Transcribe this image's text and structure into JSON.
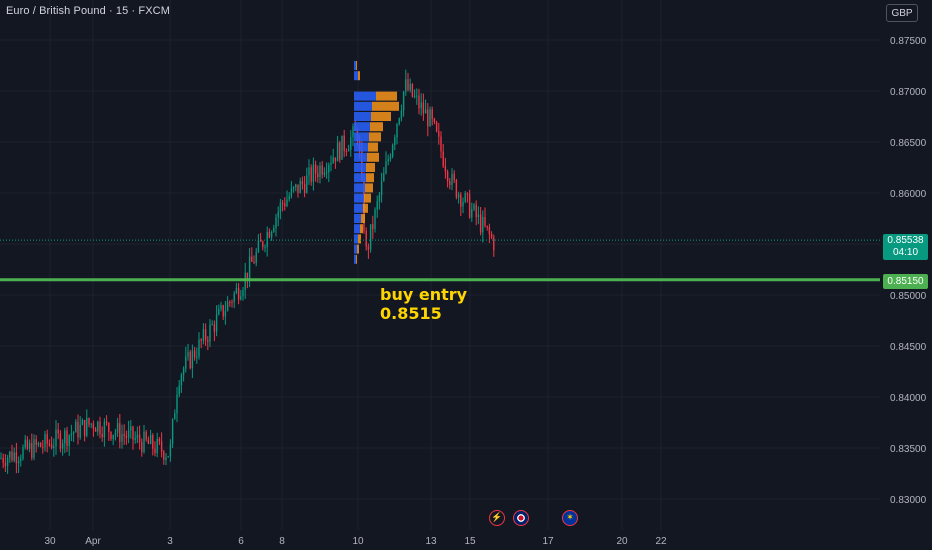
{
  "header": {
    "symbol": "Euro / British Pound · 15 · FXCM",
    "currency_button": "GBP"
  },
  "price_tags": {
    "current_price": "0.85538",
    "countdown": "04:10",
    "entry_price": "0.85150"
  },
  "annotation": {
    "line1": "buy entry",
    "line2": "0.8515"
  },
  "events": [
    {
      "icon": "lightning-icon",
      "glyph": "⚡"
    },
    {
      "icon": "uk-flag-icon",
      "glyph": ""
    },
    {
      "icon": "eu-flag-icon",
      "glyph": ""
    }
  ],
  "colors": {
    "background": "#131722",
    "grid": "#1e222d",
    "up_candle": "#089981",
    "down_candle": "#f23645",
    "entry_line": "#4caf50",
    "annotation_text": "#ffd600",
    "volume_profile_up": "#2962ff",
    "volume_profile_down": "#f7931a"
  },
  "chart_data": {
    "type": "candlestick",
    "y_axis": {
      "ticks": [
        0.875,
        0.87,
        0.865,
        0.86,
        0.855,
        0.85,
        0.845,
        0.84,
        0.835,
        0.83
      ],
      "tick_labels": [
        "0.87500",
        "0.87000",
        "0.86500",
        "0.86000",
        "0.85500",
        "0.85000",
        "0.84500",
        "0.84000",
        "0.83500",
        "0.83000"
      ],
      "range": [
        0.8275,
        0.8775
      ]
    },
    "x_axis": {
      "tick_labels": [
        "30",
        "Apr",
        "3",
        "6",
        "8",
        "10",
        "13",
        "15",
        "17",
        "20",
        "22"
      ]
    },
    "horizontal_lines": [
      {
        "price": 0.8515,
        "label": "buy entry 0.8515"
      }
    ],
    "current_price": 0.85538,
    "series_path": [
      {
        "x": "start",
        "y": 0.834
      },
      {
        "x": "30",
        "y": 0.8355
      },
      {
        "x": "Apr",
        "y": 0.8375
      },
      {
        "x": "3",
        "y": 0.8345
      },
      {
        "x": "3",
        "y": 0.842
      },
      {
        "x": "6",
        "y": 0.851
      },
      {
        "x": "8",
        "y": 0.859
      },
      {
        "x": "10",
        "y": 0.866
      },
      {
        "x": "10",
        "y": 0.854
      },
      {
        "x": "12",
        "y": 0.8705
      },
      {
        "x": "13",
        "y": 0.867
      },
      {
        "x": "14",
        "y": 0.861
      },
      {
        "x": "15",
        "y": 0.855
      }
    ],
    "volume_profile": {
      "price_range": [
        0.8515,
        0.8735
      ],
      "rows": [
        {
          "price": 0.8695,
          "up": 22,
          "down": 21
        },
        {
          "price": 0.8685,
          "up": 18,
          "down": 27
        },
        {
          "price": 0.8675,
          "up": 17,
          "down": 20
        },
        {
          "price": 0.8665,
          "up": 16,
          "down": 13
        },
        {
          "price": 0.8655,
          "up": 15,
          "down": 12
        },
        {
          "price": 0.8645,
          "up": 14,
          "down": 10
        },
        {
          "price": 0.8635,
          "up": 13,
          "down": 12
        },
        {
          "price": 0.8625,
          "up": 12,
          "down": 9
        },
        {
          "price": 0.8615,
          "up": 12,
          "down": 8
        },
        {
          "price": 0.8605,
          "up": 11,
          "down": 8
        },
        {
          "price": 0.8595,
          "up": 10,
          "down": 7
        },
        {
          "price": 0.8585,
          "up": 9,
          "down": 5
        },
        {
          "price": 0.8575,
          "up": 7,
          "down": 4
        },
        {
          "price": 0.8565,
          "up": 6,
          "down": 3
        },
        {
          "price": 0.8555,
          "up": 4,
          "down": 3
        },
        {
          "price": 0.8545,
          "up": 3,
          "down": 2
        },
        {
          "price": 0.8535,
          "up": 2,
          "down": 1
        },
        {
          "price": 0.8715,
          "up": 4,
          "down": 2
        },
        {
          "price": 0.8725,
          "up": 2,
          "down": 1
        }
      ]
    }
  }
}
